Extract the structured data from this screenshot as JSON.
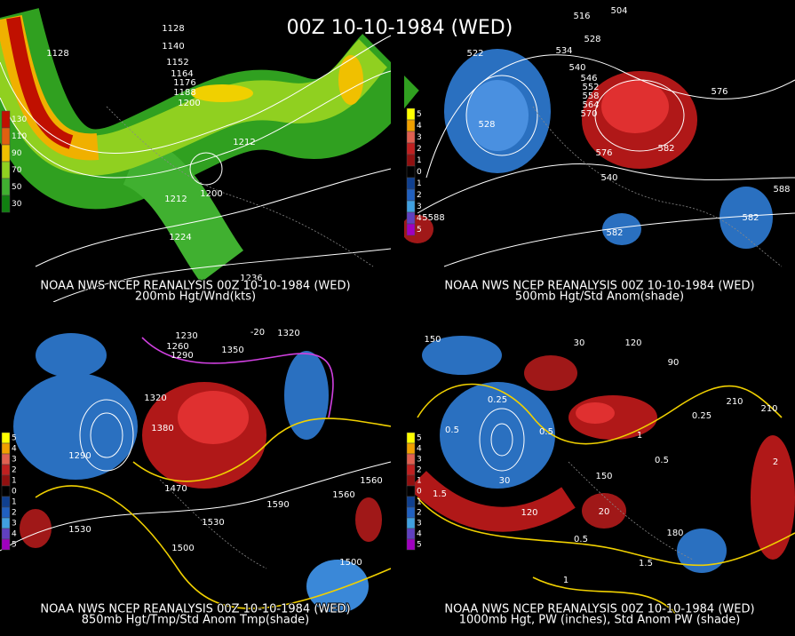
{
  "title": "00Z 10-10-1984 (WED)",
  "panels": [
    {
      "source": "NOAA NWS NCEP REANALYSIS 00Z 10-10-1984 (WED)",
      "caption": "200mb Hgt/Wnd(kts)",
      "legend": [
        "130",
        "110",
        "90",
        "70",
        "50",
        "30"
      ],
      "contour_labels": [
        "1128",
        "1128",
        "1140",
        "1152",
        "1164",
        "1176",
        "1188",
        "1200",
        "1212",
        "1200",
        "1212",
        "1224",
        "1236"
      ]
    },
    {
      "source": "NOAA NWS NCEP REANALYSIS 00Z 10-10-1984 (WED)",
      "caption": "500mb Hgt/Std Anom(shade)",
      "legend": [
        "5",
        "4",
        "3",
        "2",
        "1",
        "0",
        "1",
        "2",
        "3",
        "4",
        "5"
      ],
      "contour_labels": [
        "504",
        "516",
        "528",
        "522",
        "534",
        "540",
        "546",
        "552",
        "558",
        "564",
        "570",
        "528",
        "576",
        "582",
        "540",
        "582",
        "576",
        "582",
        "588",
        "5588"
      ]
    },
    {
      "source": "NOAA NWS NCEP REANALYSIS 00Z 10-10-1984 (WED)",
      "caption": "850mb Hgt/Tmp/Std Anom Tmp(shade)",
      "legend": [
        "5",
        "4",
        "3",
        "2",
        "1",
        "0",
        "1",
        "2",
        "3",
        "4",
        "5"
      ],
      "contour_labels": [
        "1230",
        "1320",
        "1260",
        "1290",
        "1350",
        "1320",
        "1380",
        "1290",
        "1470",
        "1530",
        "1500",
        "1530",
        "1560",
        "1590",
        "1560",
        "1500",
        "-20"
      ]
    },
    {
      "source": "NOAA NWS NCEP REANALYSIS 00Z 10-10-1984 (WED)",
      "caption": "1000mb Hgt, PW (inches), Std Anom PW (shade)",
      "legend": [
        "5",
        "4",
        "3",
        "2",
        "1",
        "0",
        "1",
        "2",
        "3",
        "4",
        "5"
      ],
      "contour_labels": [
        "150",
        "30",
        "120",
        "90",
        "210",
        "210",
        "0.25",
        "0.5",
        "0.25",
        "0.5",
        "1",
        "0.5",
        "1.5",
        "1.5",
        "0.5",
        "1",
        "2",
        "180",
        "30",
        "120",
        "20",
        "150"
      ]
    }
  ]
}
